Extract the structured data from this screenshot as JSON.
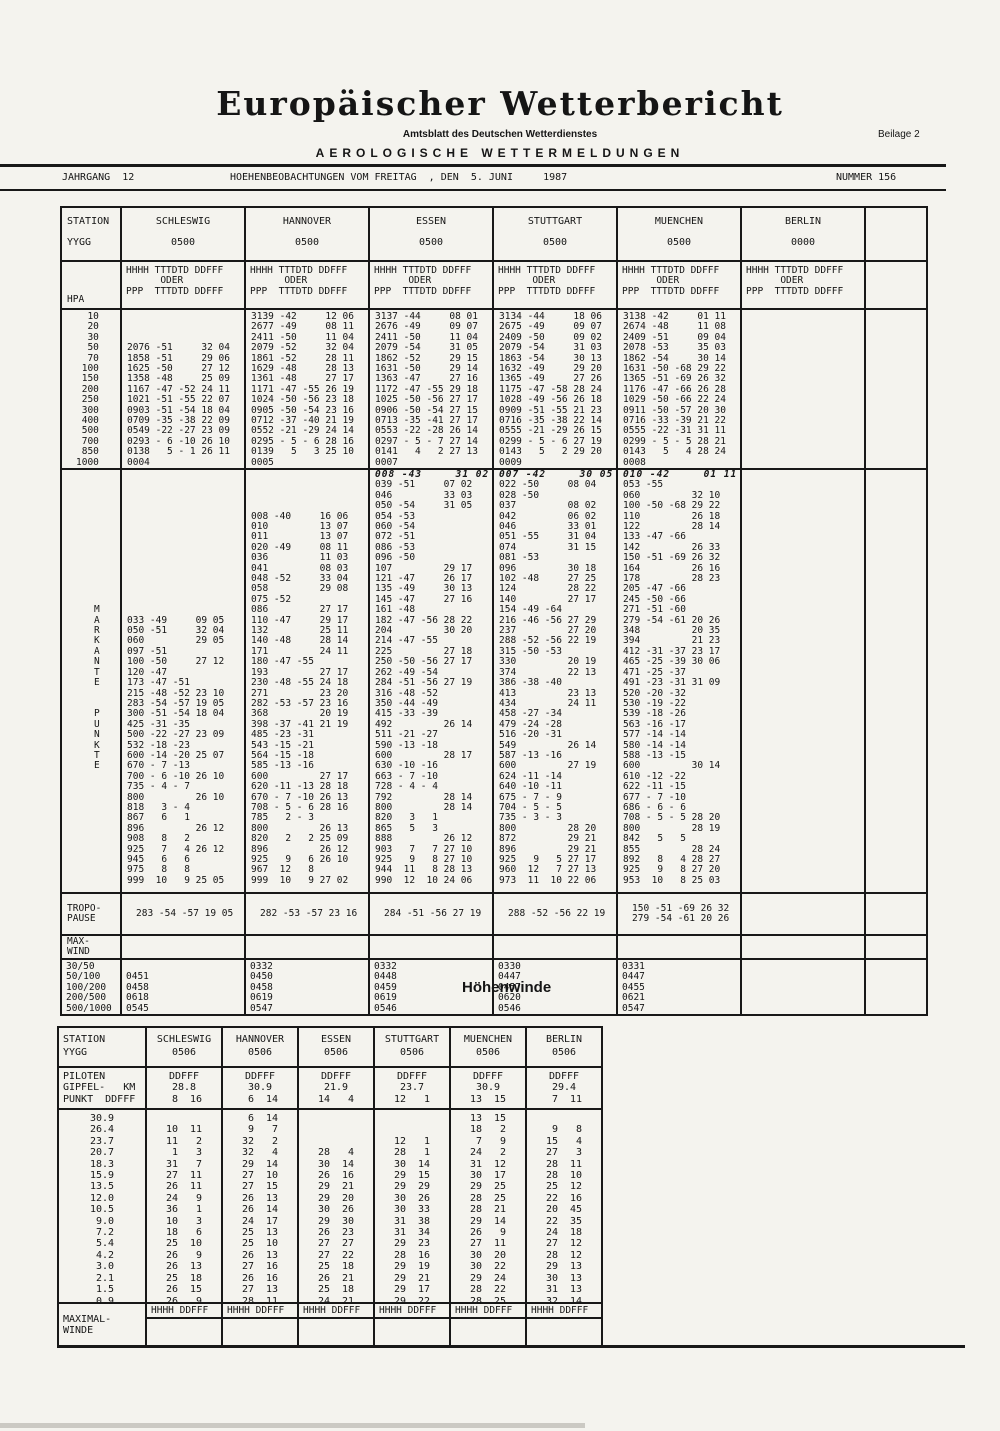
{
  "header": {
    "title": "Europäischer Wetterbericht",
    "subtitle": "Amtsblatt des Deutschen Wetterdienstes",
    "supplement": "Beilage 2",
    "section": "AEROLOGISCHE WETTERMELDUNGEN",
    "jahrgang": "JAHRGANG  12",
    "observation": "HOEHENBEOBACHTUNGEN VOM FREITAG  , DEN  5. JUNI     1987",
    "nummer": "NUMMER 156"
  },
  "main": {
    "station_label": "STATION",
    "yygg_label": "YYGG",
    "hpa_label": "HPA",
    "code_lines": "HHHH TTTDTD DDFFF\n      ODER\nPPP  TTTDTD DDFFF",
    "stations": [
      {
        "name": "SCHLESWIG",
        "yygg": "0500"
      },
      {
        "name": "HANNOVER",
        "yygg": "0500"
      },
      {
        "name": "ESSEN",
        "yygg": "0500"
      },
      {
        "name": "STUTTGART",
        "yygg": "0500"
      },
      {
        "name": "MUENCHEN",
        "yygg": "0500"
      },
      {
        "name": "BERLIN",
        "yygg": "0000"
      }
    ],
    "hpa_levels": "  10\n  20\n  30\n  50\n  70\n 100\n 150\n 200\n 250\n 300\n 400\n 500\n 700\n 850\n1000",
    "pressure_cols": [
      "\n\n\n2076 -51     32 04\n1858 -51     29 06\n1625 -50     27 12\n1358 -48     25 09\n1167 -47 -52 24 11\n1021 -51 -55 22 07\n0903 -51 -54 18 04\n0709 -35 -38 22 09\n0549 -22 -27 23 09\n0293 - 6 -10 26 10\n0138   5 - 1 26 11\n0004",
      "3139 -42     12 06\n2677 -49     08 11\n2411 -50     11 04\n2079 -52     32 04\n1861 -52     28 11\n1629 -48     28 13\n1361 -48     27 17\n1171 -47 -55 26 19\n1024 -50 -56 23 18\n0905 -50 -54 23 16\n0712 -37 -40 21 19\n0552 -21 -29 24 14\n0295 - 5 - 6 28 16\n0139   5   3 25 10\n0005",
      "3137 -44     08 01\n2676 -49     09 07\n2411 -50     11 04\n2079 -54     31 05\n1862 -52     29 15\n1631 -50     29 14\n1363 -47     27 16\n1172 -47 -55 29 18\n1025 -50 -56 27 17\n0906 -50 -54 27 15\n0713 -35 -41 27 17\n0553 -22 -28 26 14\n0297 - 5 - 7 27 14\n0141   4   2 27 13\n0007",
      "3134 -44     18 06\n2675 -49     09 07\n2409 -50     09 02\n2079 -54     31 03\n1863 -54     30 13\n1632 -49     29 20\n1365 -49     27 26\n1175 -47 -58 28 24\n1028 -49 -56 26 18\n0909 -51 -55 21 23\n0716 -35 -38 22 14\n0555 -21 -29 26 15\n0299 - 5 - 6 27 19\n0143   5   2 29 20\n0009",
      "3138 -42     01 11\n2674 -48     11 08\n2409 -51     09 04\n2078 -53     35 03\n1862 -54     30 14\n1631 -50 -68 29 22\n1365 -51 -69 26 32\n1176 -47 -66 26 28\n1029 -50 -66 22 24\n0911 -50 -57 20 30\n0716 -33 -39 21 22\n0555 -22 -31 31 11\n0299 - 5 - 5 28 21\n0143   5   4 28 24\n0008",
      ""
    ],
    "mark_letters": "\n\n\n\n\n\n\n\n\n\n\n\nM\nA\nR\nK\nA\nN\nT\nE\n\n\nP\nU\nN\nK\nT\nE",
    "mark_hand": [
      "",
      "",
      "008 -43     31 02",
      "007 -42     30 05",
      "010 -42     01 11",
      ""
    ],
    "mark_cols": [
      "\n\n\n\n\n\n\n\n\n\n\n\n\n033 -49     09 05\n050 -51     32 04\n060         29 05\n097 -51\n100 -50     27 12\n120 -47\n173 -47 -51\n215 -48 -52 23 10\n283 -54 -57 19 05\n300 -51 -54 18 04\n425 -31 -35\n500 -22 -27 23 09\n532 -18 -23\n600 -14 -20 25 07\n670 - 7 -13\n700 - 6 -10 26 10\n735 - 4 - 7\n800         26 10\n818   3 - 4\n867   6   1\n896         26 12\n908   8   2\n925   7   4 26 12\n945   6   6\n975   8   8\n999  10   9 25 05",
      "\n\n\n008 -40     16 06\n010         13 07\n011         13 07\n020 -49     08 11\n036         11 03\n041         08 03\n048 -52     33 04\n058         29 08\n075 -52\n086         27 17\n110 -47     29 17\n132         25 11\n140 -48     28 14\n171         24 11\n180 -47 -55\n193         27 17\n230 -48 -55 24 18\n271         23 20\n282 -53 -57 23 16\n368         20 19\n398 -37 -41 21 19\n485 -23 -31\n543 -15 -21\n564 -15 -18\n585 -13 -16\n600         27 17\n620 -11 -13 28 18\n670 - 7 -10 26 13\n708 - 5 - 6 28 16\n785   2 - 3\n800         26 13\n820   2   2 25 09\n896         26 12\n925   9   6 26 10\n967  12   8\n999  10   9 27 02",
      "039 -51     07 02\n046         33 03\n050 -54     31 05\n054 -53\n060 -54\n072 -51\n086 -53\n096 -50\n107         29 17\n121 -47     26 17\n135 -49     30 13\n145 -47     27 16\n161 -48\n182 -47 -56 28 22\n204         30 20\n214 -47 -55\n225         27 18\n250 -50 -56 27 17\n262 -49 -54\n284 -51 -56 27 19\n316 -48 -52\n350 -44 -49\n415 -33 -39\n492         26 14\n511 -21 -27\n590 -13 -18\n600         28 17\n630 -10 -16\n663 - 7 -10\n728 - 4 - 4\n792         28 14\n800         28 14\n820   3   1\n865   5   3\n888         26 12\n903   7   7 27 10\n925   9   8 27 10\n944  11   8 28 13\n990  12  10 24 06",
      "022 -50     08 04\n028 -50\n037         08 02\n042         06 02\n046         33 01\n051 -55     31 04\n074         31 15\n081 -53\n096         30 18\n102 -48     27 25\n124         28 22\n140         27 17\n154 -49 -64\n216 -46 -56 27 29\n237         27 20\n288 -52 -56 22 19\n315 -50 -53\n330         20 19\n374         22 13\n386 -38 -40\n413         23 13\n434         24 11\n458 -27 -34\n479 -24 -28\n516 -20 -31\n549         26 14\n587 -13 -16\n600         27 19\n624 -11 -14\n640 -10 -11\n675 - 7 - 9\n704 - 5 - 5\n735 - 3 - 3\n800         28 20\n872         29 21\n896         29 21\n925   9   5 27 17\n960  12   7 27 13\n973  11  10 22 06",
      "053 -55\n060         32 10\n100 -50 -68 29 22\n110         26 18\n122         28 14\n133 -47 -66\n142         26 33\n150 -51 -69 26 32\n164         26 16\n178         28 23\n205 -47 -66\n245 -50 -66\n271 -51 -60\n279 -54 -61 20 26\n348         20 35\n394         21 23\n412 -31 -37 23 17\n465 -25 -39 30 06\n471 -25 -37\n491 -23 -31 31 09\n520 -20 -32\n530 -19 -22\n539 -18 -26\n563 -16 -17\n577 -14 -14\n580 -14 -14\n588 -13 -15\n600         30 14\n610 -12 -22\n622 -11 -15\n677 - 7 -10\n686 - 6 - 6\n708 - 5 - 5 28 20\n800         28 19\n842   5   5\n855         28 24\n892   8   4 28 27\n925   9   8 27 20\n953  10   8 25 03",
      ""
    ],
    "tropo_label": "TROPO-\nPAUSE",
    "tropo_cols": [
      "283 -54 -57 19 05",
      "282 -53 -57 23 16",
      "284 -51 -56 27 19",
      "288 -52 -56 22 19",
      "150 -51 -69 26 32\n279 -54 -61 20 26",
      ""
    ],
    "maxwind_label": "MAX-\nWIND",
    "layer_labels": "30/50\n50/100\n100/200\n200/500\n500/1000",
    "layer_cols": [
      "\n0451\n0458\n0618\n0545",
      "0332\n0450\n0458\n0619\n0547",
      "0332\n0448\n0459\n0619\n0546",
      "0330\n0447\n0457\n0620\n0546",
      "0331\n0447\n0455\n0621\n0547",
      ""
    ]
  },
  "hoehenwinde": {
    "title": "Höhenwinde",
    "station_label": "STATION",
    "yygg_label": "YYGG",
    "stations": [
      {
        "name": "SCHLESWIG",
        "yygg": "0506"
      },
      {
        "name": "HANNOVER",
        "yygg": "0506"
      },
      {
        "name": "ESSEN",
        "yygg": "0506"
      },
      {
        "name": "STUTTGART",
        "yygg": "0506"
      },
      {
        "name": "MUENCHEN",
        "yygg": "0506"
      },
      {
        "name": "BERLIN",
        "yygg": "0506"
      }
    ],
    "piloten_label": "PILOTEN\nGIPFEL-   KM\nPUNKT  DDFFF",
    "piloten_cols": [
      "DDFFF\n28.8\n 8  16",
      "DDFFF\n30.9\n 6  14",
      "DDFFF\n21.9\n14   4",
      "DDFFF\n23.7\n12   1",
      "DDFFF\n30.9\n13  15",
      "DDFFF\n29.4\n 7  11"
    ],
    "alt_labels": "30.9\n26.4\n23.7\n20.7\n18.3\n15.9\n13.5\n12.0\n10.5\n 9.0\n 7.2\n 5.4\n 4.2\n 3.0\n 2.1\n 1.5\n 0.9",
    "alt_cols": [
      "\n10  11\n11   2\n 1   3\n31   7\n27  11\n26  11\n24   9\n36   1\n10   3\n18   6\n25  10\n26   9\n26  13\n25  18\n26  15\n26   9",
      " 6  14\n 9   7\n32   2\n32   4\n29  14\n27  10\n27  15\n26  13\n26  14\n24  17\n25  13\n25  10\n26  13\n27  16\n26  16\n27  13\n28  11",
      "\n\n\n28   4\n30  14\n26  16\n29  21\n29  20\n30  26\n29  30\n26  23\n27  27\n27  22\n25  18\n26  21\n25  18\n24  21",
      "\n\n12   1\n28   1\n30  14\n29  15\n29  29\n30  26\n30  33\n31  38\n31  34\n29  23\n28  16\n29  19\n29  21\n29  17\n29  22",
      "13  15\n18   2\n 7   9\n24   2\n31  12\n30  17\n29  25\n28  25\n28  21\n29  14\n26   9\n27  11\n30  20\n30  22\n29  24\n28  22\n28  25",
      "\n 9   8\n15   4\n27   3\n28  11\n28  10\n25  12\n22  16\n20  45\n22  35\n24  18\n27  12\n28  12\n29  13\n30  13\n31  13\n32  14"
    ],
    "max_label": "MAXIMAL-\nWINDE",
    "max_header": "HHHH  DDFFF"
  }
}
